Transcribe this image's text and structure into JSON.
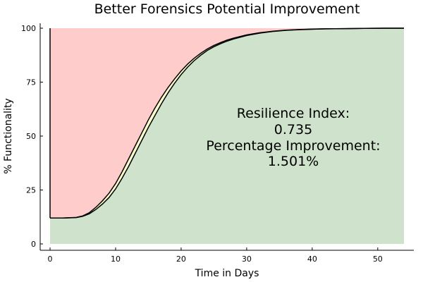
{
  "chart_data": {
    "type": "area",
    "title": "Better Forensics Potential Improvement",
    "xlabel": "Time in Days",
    "ylabel": "% Functionality",
    "xlim": [
      0,
      54
    ],
    "ylim": [
      0,
      100
    ],
    "xticks": [
      0,
      10,
      20,
      30,
      40,
      50
    ],
    "yticks": [
      0,
      25,
      50,
      75,
      100
    ],
    "grid": false,
    "legend": "none",
    "colors": {
      "loss_region": "#ffcccc",
      "recovered_region": "#cfe3cc",
      "improvement_band": "#ffffcc",
      "line": "#000000"
    },
    "series": [
      {
        "x": [
          0,
          2,
          4,
          5,
          6,
          7,
          8,
          9,
          10,
          11,
          12,
          13,
          14,
          15,
          16,
          17,
          18,
          19,
          20,
          21,
          22,
          23,
          24,
          25,
          26,
          27,
          28,
          30,
          32,
          34,
          36,
          38,
          40,
          42,
          45,
          48,
          51,
          54
        ],
        "values": [
          12,
          12,
          12.2,
          12.8,
          14,
          16,
          18.5,
          21.5,
          25.5,
          30.5,
          36,
          42,
          48,
          54,
          59.5,
          65,
          70,
          74.5,
          78.5,
          82,
          85,
          87.5,
          89.7,
          91.4,
          92.8,
          94,
          95,
          96.6,
          97.7,
          98.5,
          99,
          99.3,
          99.5,
          99.7,
          99.8,
          99.9,
          100,
          100
        ]
      },
      {
        "x": [
          0,
          2,
          4,
          5,
          6,
          7,
          8,
          9,
          10,
          11,
          12,
          13,
          14,
          15,
          16,
          17,
          18,
          19,
          20,
          21,
          22,
          23,
          24,
          25,
          26,
          27,
          28,
          30,
          32,
          34,
          36,
          38,
          40,
          42,
          45,
          48,
          51,
          54
        ],
        "values": [
          12,
          12,
          12.3,
          13,
          14.5,
          17,
          20,
          23.5,
          28,
          33.5,
          39.5,
          45.5,
          51.5,
          57.5,
          63,
          68,
          72.5,
          76.5,
          80.2,
          83.4,
          86.1,
          88.4,
          90.4,
          92,
          93.3,
          94.5,
          95.4,
          96.9,
          97.9,
          98.6,
          99.1,
          99.4,
          99.6,
          99.7,
          99.8,
          99.9,
          100,
          100
        ]
      }
    ],
    "annotations": [
      "Resilience Index:",
      "0.735",
      "Percentage Improvement:",
      "1.501%"
    ]
  }
}
